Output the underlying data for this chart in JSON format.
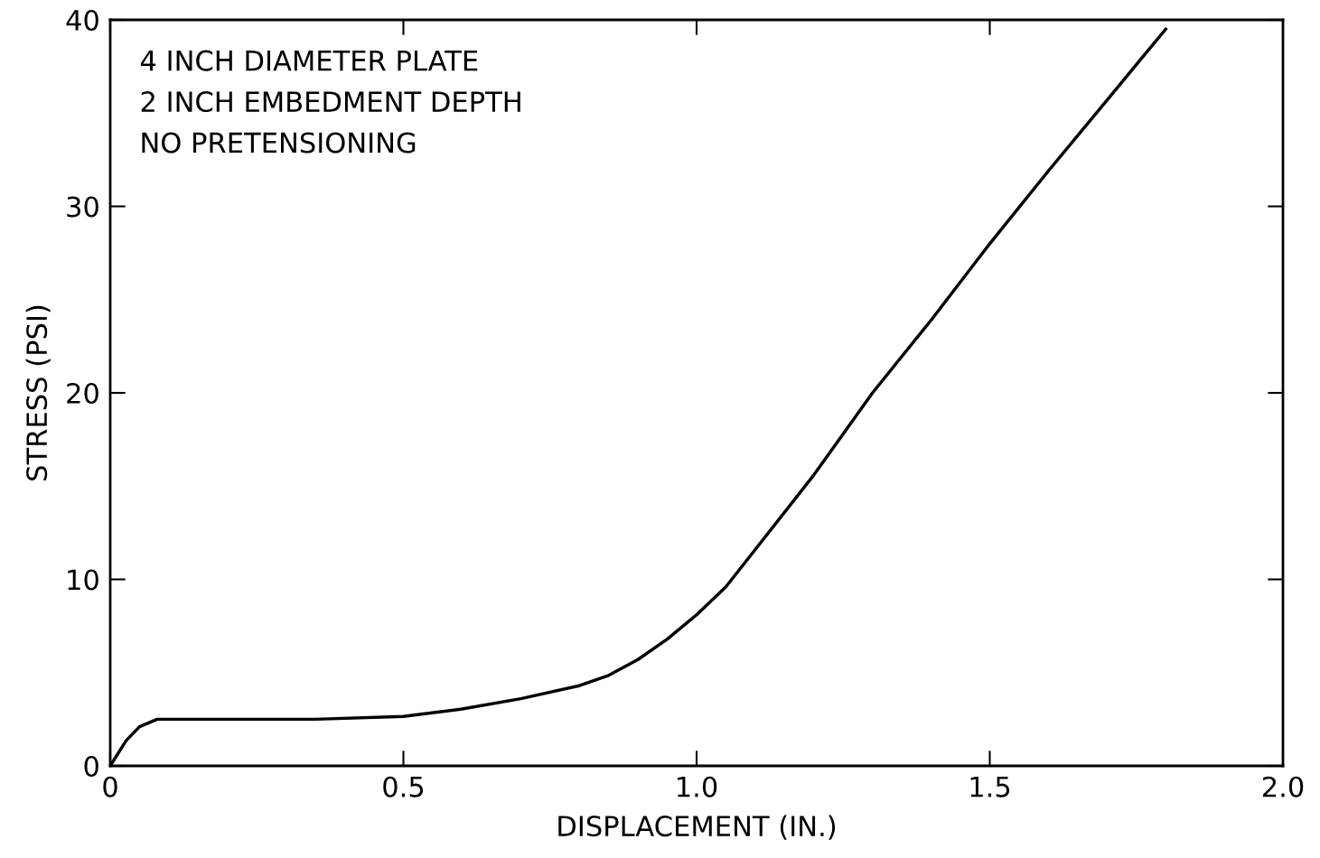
{
  "chart_data": {
    "type": "line",
    "xlabel": "DISPLACEMENT (IN.)",
    "ylabel": "STRESS (PSI)",
    "annotations": [
      "4 INCH DIAMETER PLATE",
      "2 INCH EMBEDMENT DEPTH",
      "NO PRETENSIONING"
    ],
    "x": [
      0,
      0.027,
      0.05,
      0.08,
      0.2,
      0.35,
      0.5,
      0.6,
      0.7,
      0.8,
      0.85,
      0.9,
      0.95,
      1.0,
      1.05,
      1.1,
      1.2,
      1.3,
      1.4,
      1.5,
      1.6,
      1.7,
      1.8
    ],
    "series": [
      {
        "color": "#000000",
        "values": [
          0,
          1.35,
          2.1,
          2.5,
          2.5,
          2.5,
          2.65,
          3.05,
          3.6,
          4.3,
          4.85,
          5.7,
          6.8,
          8.1,
          9.6,
          11.6,
          15.6,
          20,
          23.9,
          28,
          31.9,
          35.7,
          39.5
        ]
      }
    ],
    "xlim": [
      0,
      2.0
    ],
    "ylim": [
      0,
      40
    ],
    "xticks": [
      0,
      0.5,
      {
        "value": 1.0,
        "label": "1.0"
      },
      1.5,
      {
        "value": 2.0,
        "label": "2.0"
      }
    ],
    "yticks": [
      0,
      10,
      20,
      30,
      40
    ],
    "grid": false,
    "legend": false,
    "marker": "none",
    "line_style": "solid"
  }
}
